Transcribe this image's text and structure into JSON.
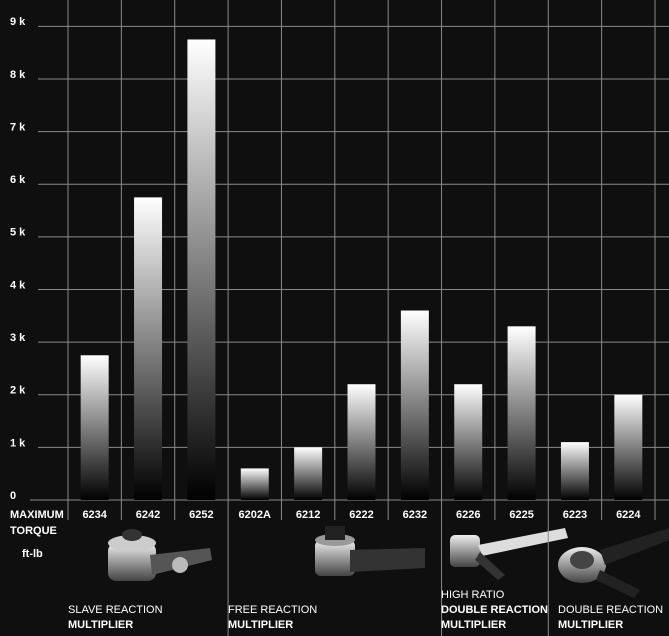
{
  "chart_data": {
    "type": "bar",
    "y_axis_title_lines": [
      "MAXIMUM",
      "TORQUE"
    ],
    "unit": "ft-lb",
    "categories": [
      "6234",
      "6242",
      "6252",
      "6202A",
      "6212",
      "6222",
      "6232",
      "6226",
      "6225",
      "6223",
      "6224"
    ],
    "values": [
      2750,
      5750,
      8750,
      600,
      1000,
      2200,
      3600,
      2200,
      3300,
      1100,
      2000
    ],
    "color_top": "#ffffff",
    "color_bottom": "#000000",
    "ylim": [
      0,
      9500
    ],
    "yticks": [
      0,
      {
        "value": 1000,
        "label": "1 k"
      },
      {
        "value": 2000,
        "label": "2 k"
      },
      {
        "value": 3000,
        "label": "3 k"
      },
      {
        "value": 4000,
        "label": "4 k"
      },
      {
        "value": 5000,
        "label": "5 k"
      },
      {
        "value": 6000,
        "label": "6 k"
      },
      {
        "value": 7000,
        "label": "7 k"
      },
      {
        "value": 8000,
        "label": "8 k"
      },
      {
        "value": 9000,
        "label": "9 k"
      }
    ],
    "grid": true,
    "groups": [
      {
        "lines": [
          "SLAVE REACTION",
          "MULTIPLIER"
        ]
      },
      {
        "lines": [
          "FREE REACTION",
          "MULTIPLIER"
        ]
      },
      {
        "lines": [
          "HIGH RATIO",
          "DOUBLE REACTION",
          "MULTIPLIER"
        ]
      },
      {
        "lines": [
          "DOUBLE REACTION",
          "MULTIPLIER"
        ]
      }
    ]
  }
}
